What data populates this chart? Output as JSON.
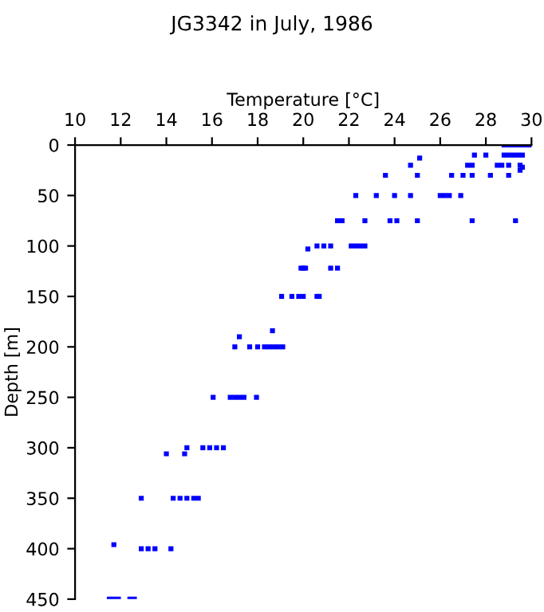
{
  "chart_data": {
    "type": "scatter",
    "title": "JG3342 in July, 1986",
    "xlabel": "Temperature [°C]",
    "ylabel": "Depth [m]",
    "series": [
      {
        "color": "#0000ff",
        "marker": "square",
        "x": [
          28.8,
          29.0,
          29.2,
          29.4,
          29.6,
          29.8,
          30.0,
          25.1,
          27.5,
          28.0,
          28.8,
          29.0,
          29.2,
          29.4,
          29.6,
          24.7,
          27.2,
          27.4,
          28.5,
          28.7,
          29.0,
          29.5,
          29.6,
          23.6,
          25.0,
          26.5,
          27.0,
          27.4,
          28.2,
          29.0,
          29.5,
          22.3,
          23.2,
          24.0,
          24.7,
          26.0,
          26.2,
          26.4,
          26.9,
          21.5,
          21.7,
          22.7,
          23.8,
          24.1,
          25.0,
          27.4,
          29.3,
          20.6,
          20.9,
          21.2,
          22.1,
          22.3,
          22.5,
          22.7,
          20.2,
          19.9,
          20.0,
          20.1,
          21.2,
          21.5,
          19.05,
          19.5,
          19.8,
          20.0,
          20.6,
          20.7,
          18.65,
          17.2,
          17.0,
          17.65,
          18.0,
          18.3,
          18.5,
          18.7,
          18.9,
          19.1,
          16.05,
          16.8,
          17.0,
          17.2,
          17.4,
          17.95,
          14.9,
          15.6,
          15.9,
          16.2,
          16.5,
          14.0,
          14.8,
          12.9,
          14.3,
          14.6,
          14.9,
          15.2,
          15.4,
          11.7,
          12.9,
          13.2,
          13.5,
          14.2,
          11.5,
          11.7,
          11.9,
          12.4,
          12.6
        ],
        "values": [
          0,
          0,
          0,
          0,
          0,
          0,
          0,
          13,
          10,
          10,
          10,
          10,
          10,
          10,
          10,
          20,
          20,
          20,
          20,
          20,
          20,
          20,
          22,
          30,
          30,
          30,
          30,
          30,
          30,
          30,
          25,
          50,
          50,
          50,
          50,
          50,
          50,
          50,
          50,
          75,
          75,
          75,
          75,
          75,
          75,
          75,
          75,
          100,
          100,
          100,
          100,
          100,
          100,
          100,
          103,
          122,
          122,
          122,
          122,
          122,
          150,
          150,
          150,
          150,
          150,
          150,
          184,
          190,
          200,
          200,
          200,
          200,
          200,
          200,
          200,
          200,
          250,
          250,
          250,
          250,
          250,
          250,
          300,
          300,
          300,
          300,
          300,
          306,
          306,
          350,
          350,
          350,
          350,
          350,
          350,
          396,
          400,
          400,
          400,
          400,
          450,
          450,
          450,
          450,
          450
        ]
      }
    ],
    "xlim": [
      10,
      30
    ],
    "xticks": [
      10,
      12,
      14,
      16,
      18,
      20,
      22,
      24,
      26,
      28,
      30
    ],
    "ylim": [
      450,
      0
    ],
    "yticks": [
      0,
      50,
      100,
      150,
      200,
      250,
      300,
      350,
      400,
      450
    ],
    "grid": false,
    "legend": false
  }
}
